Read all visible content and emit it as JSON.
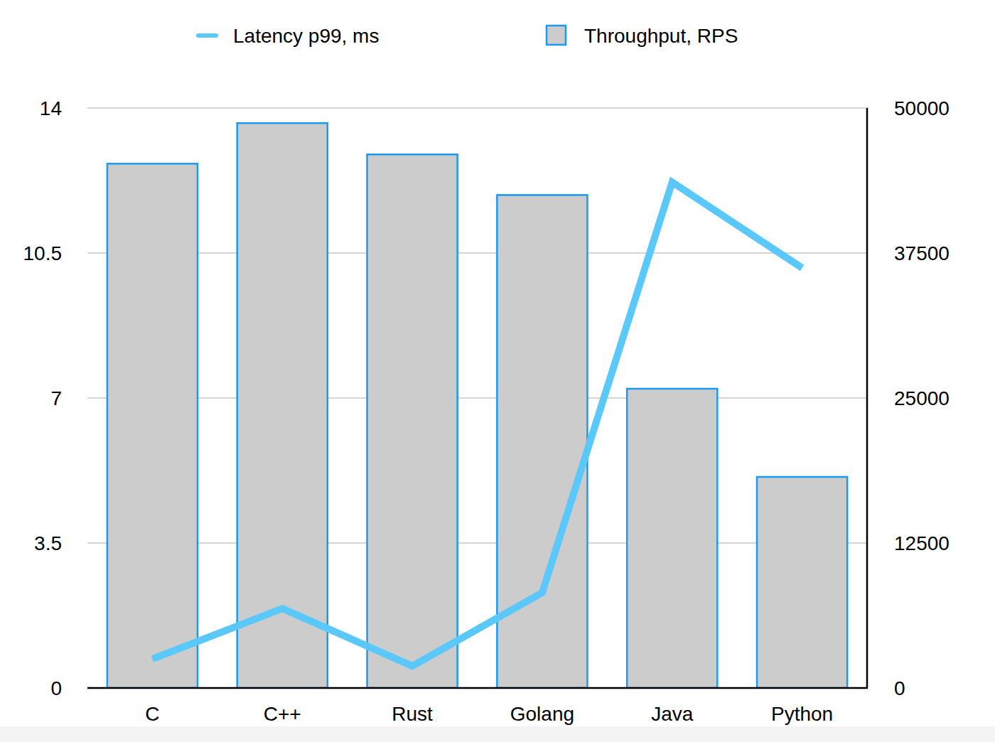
{
  "chart_data": {
    "type": "bar",
    "categories": [
      "C",
      "C++",
      "Rust",
      "Golang",
      "Java",
      "Python"
    ],
    "series": [
      {
        "name": "Latency p99, ms",
        "type": "line",
        "axis": "y",
        "color": "#5ac8fa",
        "values": [
          0.7,
          1.92,
          0.53,
          2.3,
          12.21,
          10.14
        ]
      },
      {
        "name": "Throughput, RPS",
        "type": "bar",
        "axis": "y2",
        "color": "#cccccc",
        "values": [
          45200,
          48700,
          46000,
          42500,
          25800,
          18200
        ]
      }
    ],
    "ylim": [
      0,
      14
    ],
    "yticks": [
      0,
      3.5,
      7,
      10.5,
      14
    ],
    "y2lim": [
      0,
      50000
    ],
    "y2ticks": [
      0,
      12500,
      25000,
      37500,
      50000
    ],
    "grid": true,
    "legend": "top"
  }
}
